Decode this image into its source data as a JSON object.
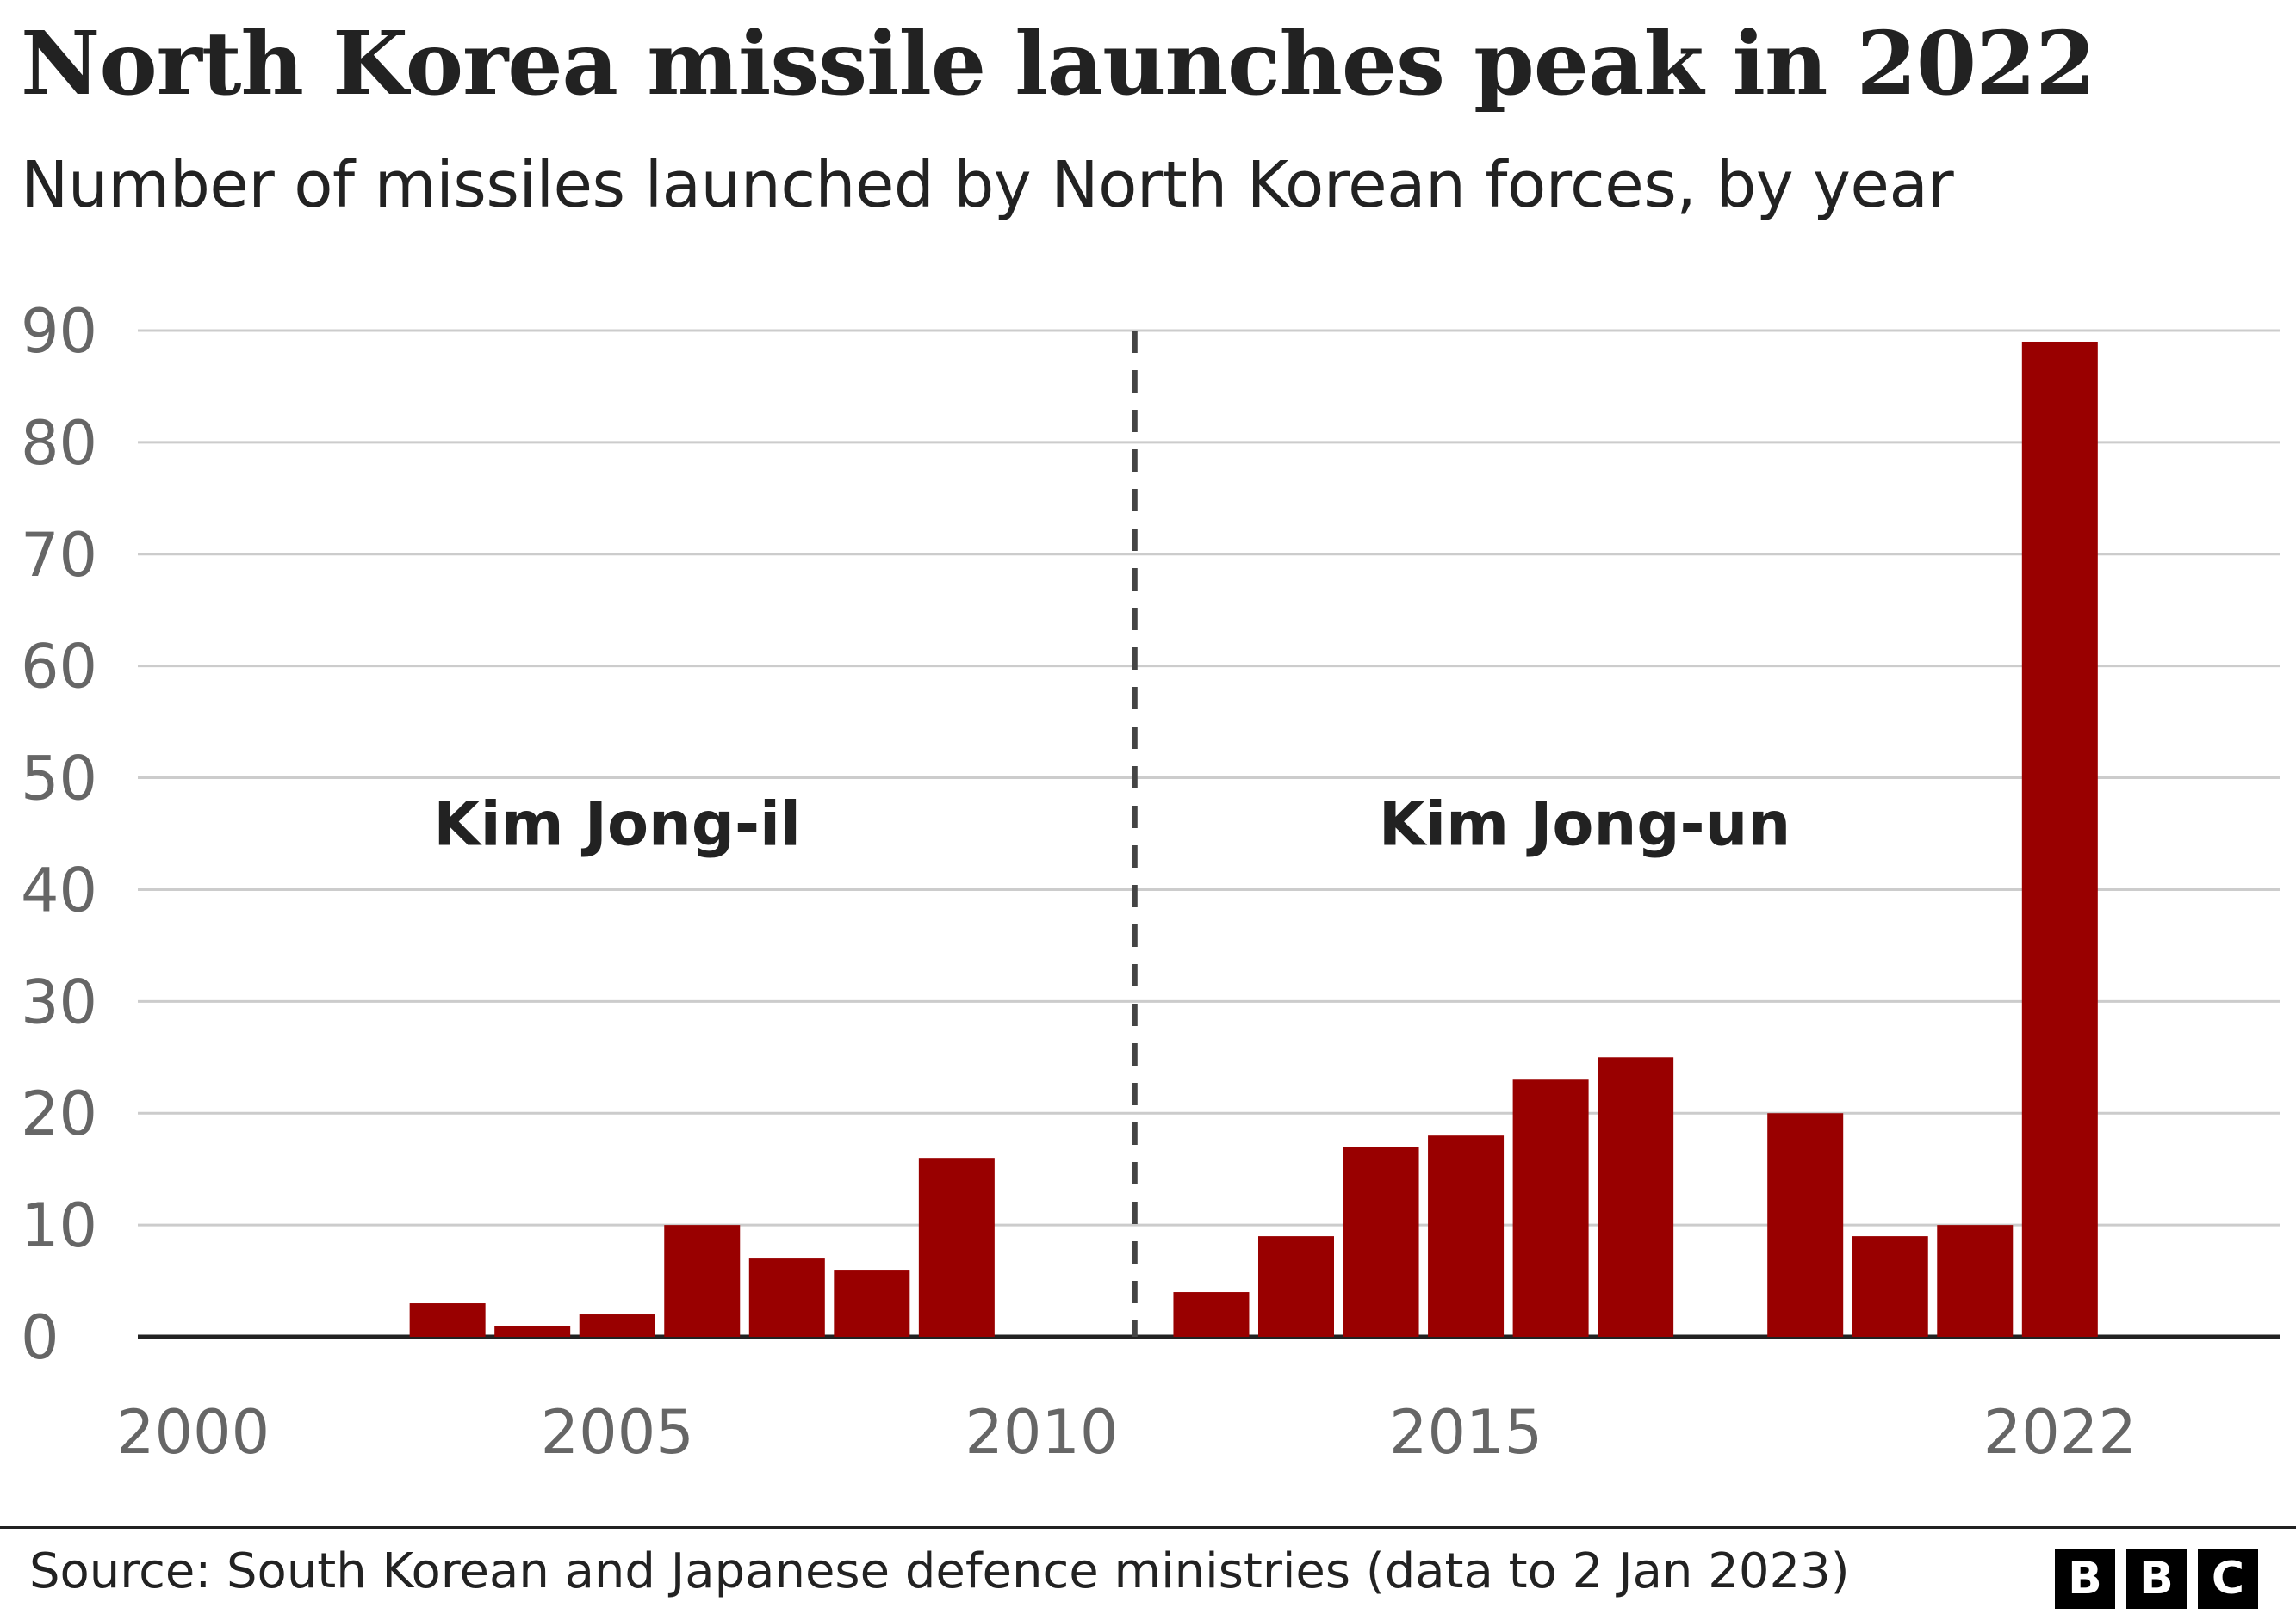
{
  "title": "North Korea missile launches peak in 2022",
  "subtitle": "Number of missiles launched by North Korean forces, by year",
  "source": "Source: South Korean and Japanese defence ministries (data to 2 Jan 2023)",
  "logo": [
    "B",
    "B",
    "C"
  ],
  "colors": {
    "bar": "#990000",
    "grid": "#cccccc",
    "axis": "#222222",
    "tick": "#666666",
    "divider": "#444444"
  },
  "chart_data": {
    "type": "bar",
    "xlabel": "",
    "ylabel": "",
    "ylim": [
      0,
      90
    ],
    "grid": true,
    "y_ticks": [
      0,
      10,
      20,
      30,
      40,
      50,
      60,
      70,
      80,
      90
    ],
    "x_ticks": [
      2000,
      2005,
      2010,
      2015,
      2022
    ],
    "x_range": [
      1999.35,
      2024.6
    ],
    "years": [
      2000,
      2001,
      2002,
      2003,
      2004,
      2005,
      2006,
      2007,
      2008,
      2009,
      2010,
      2011,
      2012,
      2013,
      2014,
      2015,
      2016,
      2017,
      2018,
      2019,
      2020,
      2021,
      2022
    ],
    "values": [
      0,
      0,
      0,
      3,
      1,
      2,
      10,
      7,
      6,
      16,
      0,
      0,
      4,
      9,
      17,
      18,
      23,
      25,
      0,
      20,
      9,
      10,
      89
    ],
    "divider_year": 2011.1,
    "annotations": [
      {
        "text": "Kim Jong-il",
        "x": 2005,
        "y": 44
      },
      {
        "text": "Kim Jong-un",
        "x": 2016.4,
        "y": 44
      }
    ]
  }
}
